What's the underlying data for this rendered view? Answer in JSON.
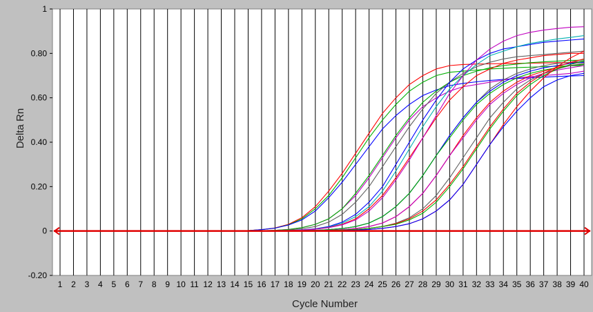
{
  "chart_data": {
    "type": "line",
    "xlabel": "Cycle Number",
    "ylabel": "Delta Rn",
    "xlim": [
      1,
      40
    ],
    "ylim": [
      -0.2,
      1.0
    ],
    "x_ticks": [
      1,
      2,
      3,
      4,
      5,
      6,
      7,
      8,
      9,
      10,
      11,
      12,
      13,
      14,
      15,
      16,
      17,
      18,
      19,
      20,
      21,
      22,
      23,
      24,
      25,
      26,
      27,
      28,
      29,
      30,
      31,
      32,
      33,
      34,
      35,
      36,
      37,
      38,
      39,
      40
    ],
    "y_ticks": [
      -0.2,
      0,
      0.2,
      0.4,
      0.6,
      0.8,
      1.0
    ],
    "y_tick_labels": [
      "-0.20",
      "0",
      "0.20",
      "0.40",
      "0.60",
      "0.80",
      "1"
    ],
    "grid": "vertical lines at each cycle",
    "threshold": 0.0,
    "threshold_color": "#e00000",
    "background_color": "#ffffff",
    "frame_color": "#c0c0c0",
    "series": [
      {
        "color": "#ff0000",
        "values": [
          0,
          0,
          0,
          0,
          0,
          0,
          0,
          0,
          0,
          0,
          0,
          0,
          0,
          0,
          0.002,
          0.006,
          0.014,
          0.03,
          0.06,
          0.11,
          0.18,
          0.26,
          0.35,
          0.44,
          0.53,
          0.6,
          0.66,
          0.7,
          0.73,
          0.745,
          0.75,
          0.752,
          0.753,
          0.754,
          0.755,
          0.756,
          0.757,
          0.758,
          0.759,
          0.76
        ]
      },
      {
        "color": "#00b000",
        "values": [
          0,
          0,
          0,
          0,
          0,
          0,
          0,
          0,
          0,
          0,
          0,
          0,
          0,
          0,
          0.002,
          0.006,
          0.013,
          0.028,
          0.055,
          0.1,
          0.16,
          0.24,
          0.33,
          0.42,
          0.5,
          0.57,
          0.63,
          0.67,
          0.7,
          0.715,
          0.72,
          0.725,
          0.73,
          0.733,
          0.736,
          0.738,
          0.74,
          0.742,
          0.744,
          0.745
        ]
      },
      {
        "color": "#0000ff",
        "values": [
          0,
          0,
          0,
          0,
          0,
          0,
          0,
          0,
          0,
          0,
          0,
          0,
          0,
          0,
          0.002,
          0.006,
          0.013,
          0.027,
          0.05,
          0.09,
          0.15,
          0.22,
          0.3,
          0.38,
          0.46,
          0.52,
          0.57,
          0.61,
          0.635,
          0.655,
          0.665,
          0.672,
          0.678,
          0.683,
          0.687,
          0.69,
          0.693,
          0.696,
          0.698,
          0.7
        ]
      },
      {
        "color": "#c000c0",
        "values": [
          0,
          0,
          0,
          0,
          0,
          0,
          0,
          0,
          0,
          0,
          0,
          0,
          0,
          0,
          0,
          0.001,
          0.003,
          0.007,
          0.015,
          0.03,
          0.055,
          0.1,
          0.16,
          0.24,
          0.33,
          0.42,
          0.5,
          0.56,
          0.6,
          0.63,
          0.65,
          0.66,
          0.67,
          0.68,
          0.69,
          0.695,
          0.7,
          0.705,
          0.71,
          0.72
        ]
      },
      {
        "color": "#00b000",
        "values": [
          0,
          0,
          0,
          0,
          0,
          0,
          0,
          0,
          0,
          0,
          0,
          0,
          0,
          0,
          0,
          0.001,
          0.003,
          0.007,
          0.015,
          0.03,
          0.055,
          0.1,
          0.17,
          0.25,
          0.34,
          0.43,
          0.51,
          0.58,
          0.63,
          0.67,
          0.7,
          0.72,
          0.735,
          0.745,
          0.752,
          0.758,
          0.762,
          0.765,
          0.768,
          0.77
        ]
      },
      {
        "color": "#606060",
        "values": [
          0,
          0,
          0,
          0,
          0,
          0,
          0,
          0,
          0,
          0,
          0,
          0,
          0,
          0,
          0,
          0.001,
          0.002,
          0.005,
          0.01,
          0.02,
          0.04,
          0.075,
          0.13,
          0.2,
          0.29,
          0.38,
          0.47,
          0.55,
          0.62,
          0.67,
          0.71,
          0.74,
          0.76,
          0.775,
          0.785,
          0.79,
          0.795,
          0.8,
          0.805,
          0.81
        ]
      },
      {
        "color": "#0000ff",
        "values": [
          0,
          0,
          0,
          0,
          0,
          0,
          0,
          0,
          0,
          0,
          0,
          0,
          0,
          0,
          0,
          0,
          0.001,
          0.002,
          0.005,
          0.01,
          0.02,
          0.04,
          0.075,
          0.13,
          0.2,
          0.3,
          0.4,
          0.5,
          0.59,
          0.67,
          0.73,
          0.77,
          0.8,
          0.82,
          0.83,
          0.84,
          0.85,
          0.855,
          0.86,
          0.865
        ]
      },
      {
        "color": "#00b0b0",
        "values": [
          0,
          0,
          0,
          0,
          0,
          0,
          0,
          0,
          0,
          0,
          0,
          0,
          0,
          0,
          0,
          0,
          0.001,
          0.002,
          0.004,
          0.009,
          0.018,
          0.035,
          0.065,
          0.11,
          0.18,
          0.27,
          0.37,
          0.47,
          0.56,
          0.64,
          0.7,
          0.75,
          0.79,
          0.81,
          0.83,
          0.845,
          0.855,
          0.865,
          0.872,
          0.88
        ]
      },
      {
        "color": "#ff0000",
        "values": [
          0,
          0,
          0,
          0,
          0,
          0,
          0,
          0,
          0,
          0,
          0,
          0,
          0,
          0,
          0,
          0,
          0.001,
          0.002,
          0.004,
          0.008,
          0.016,
          0.03,
          0.055,
          0.1,
          0.16,
          0.24,
          0.33,
          0.42,
          0.51,
          0.59,
          0.65,
          0.7,
          0.73,
          0.755,
          0.77,
          0.78,
          0.79,
          0.795,
          0.8,
          0.8
        ]
      },
      {
        "color": "#c000c0",
        "values": [
          0,
          0,
          0,
          0,
          0,
          0,
          0,
          0,
          0,
          0,
          0,
          0,
          0,
          0,
          0,
          0,
          0.001,
          0.002,
          0.004,
          0.008,
          0.015,
          0.028,
          0.05,
          0.09,
          0.15,
          0.23,
          0.32,
          0.42,
          0.52,
          0.62,
          0.7,
          0.77,
          0.82,
          0.855,
          0.88,
          0.895,
          0.905,
          0.912,
          0.918,
          0.92
        ]
      },
      {
        "color": "#606060",
        "values": [
          0,
          0,
          0,
          0,
          0,
          0,
          0,
          0,
          0,
          0,
          0,
          0,
          0,
          0,
          0,
          0,
          0,
          0.001,
          0.002,
          0.003,
          0.006,
          0.011,
          0.02,
          0.036,
          0.065,
          0.11,
          0.17,
          0.25,
          0.34,
          0.43,
          0.51,
          0.58,
          0.64,
          0.68,
          0.71,
          0.73,
          0.745,
          0.755,
          0.76,
          0.765
        ]
      },
      {
        "color": "#0000ff",
        "values": [
          0,
          0,
          0,
          0,
          0,
          0,
          0,
          0,
          0,
          0,
          0,
          0,
          0,
          0,
          0,
          0,
          0,
          0.001,
          0.002,
          0.003,
          0.006,
          0.011,
          0.02,
          0.036,
          0.065,
          0.11,
          0.17,
          0.25,
          0.34,
          0.43,
          0.51,
          0.58,
          0.63,
          0.67,
          0.7,
          0.72,
          0.735,
          0.745,
          0.755,
          0.76
        ]
      },
      {
        "color": "#00b000",
        "values": [
          0,
          0,
          0,
          0,
          0,
          0,
          0,
          0,
          0,
          0,
          0,
          0,
          0,
          0,
          0,
          0,
          0,
          0.001,
          0.002,
          0.003,
          0.006,
          0.011,
          0.02,
          0.036,
          0.065,
          0.11,
          0.17,
          0.25,
          0.34,
          0.42,
          0.5,
          0.57,
          0.62,
          0.66,
          0.69,
          0.71,
          0.725,
          0.735,
          0.745,
          0.75
        ]
      },
      {
        "color": "#ff0000",
        "values": [
          0,
          0,
          0,
          0,
          0,
          0,
          0,
          0,
          0,
          0,
          0,
          0,
          0,
          0,
          0,
          0,
          0,
          0,
          0.001,
          0.002,
          0.003,
          0.006,
          0.011,
          0.02,
          0.036,
          0.065,
          0.11,
          0.17,
          0.25,
          0.34,
          0.43,
          0.51,
          0.58,
          0.63,
          0.67,
          0.7,
          0.72,
          0.735,
          0.745,
          0.755
        ]
      },
      {
        "color": "#c000c0",
        "values": [
          0,
          0,
          0,
          0,
          0,
          0,
          0,
          0,
          0,
          0,
          0,
          0,
          0,
          0,
          0,
          0,
          0,
          0,
          0.001,
          0.002,
          0.003,
          0.006,
          0.011,
          0.02,
          0.036,
          0.065,
          0.11,
          0.17,
          0.25,
          0.34,
          0.42,
          0.5,
          0.57,
          0.62,
          0.66,
          0.69,
          0.71,
          0.725,
          0.735,
          0.745
        ]
      },
      {
        "color": "#606060",
        "values": [
          0,
          0,
          0,
          0,
          0,
          0,
          0,
          0,
          0,
          0,
          0,
          0,
          0,
          0,
          0,
          0,
          0,
          0,
          0,
          0.001,
          0.002,
          0.004,
          0.007,
          0.012,
          0.02,
          0.035,
          0.06,
          0.1,
          0.16,
          0.24,
          0.33,
          0.42,
          0.51,
          0.58,
          0.64,
          0.68,
          0.71,
          0.73,
          0.745,
          0.755
        ]
      },
      {
        "color": "#ff0000",
        "values": [
          0,
          0,
          0,
          0,
          0,
          0,
          0,
          0,
          0,
          0,
          0,
          0,
          0,
          0,
          0,
          0,
          0,
          0,
          0,
          0.001,
          0.002,
          0.004,
          0.007,
          0.012,
          0.02,
          0.033,
          0.055,
          0.09,
          0.14,
          0.21,
          0.29,
          0.38,
          0.47,
          0.55,
          0.62,
          0.67,
          0.71,
          0.74,
          0.76,
          0.775
        ]
      },
      {
        "color": "#00b000",
        "values": [
          0,
          0,
          0,
          0,
          0,
          0,
          0,
          0,
          0,
          0,
          0,
          0,
          0,
          0,
          0,
          0,
          0,
          0,
          0,
          0.001,
          0.002,
          0.004,
          0.007,
          0.012,
          0.02,
          0.03,
          0.05,
          0.08,
          0.13,
          0.2,
          0.28,
          0.37,
          0.46,
          0.54,
          0.61,
          0.66,
          0.7,
          0.73,
          0.75,
          0.765
        ]
      },
      {
        "color": "#ff0000",
        "values": [
          0,
          0,
          0,
          0,
          0,
          0,
          0,
          0,
          0,
          0,
          0,
          0,
          0,
          0,
          0,
          0,
          0,
          0,
          0,
          0,
          0.001,
          0.002,
          0.004,
          0.007,
          0.012,
          0.02,
          0.033,
          0.055,
          0.09,
          0.14,
          0.21,
          0.3,
          0.39,
          0.48,
          0.56,
          0.63,
          0.69,
          0.74,
          0.78,
          0.81
        ]
      },
      {
        "color": "#0000ff",
        "values": [
          0,
          0,
          0,
          0,
          0,
          0,
          0,
          0,
          0,
          0,
          0,
          0,
          0,
          0,
          0,
          0,
          0,
          0,
          0,
          0,
          0.001,
          0.002,
          0.004,
          0.007,
          0.012,
          0.02,
          0.033,
          0.055,
          0.09,
          0.14,
          0.21,
          0.3,
          0.39,
          0.47,
          0.54,
          0.6,
          0.65,
          0.68,
          0.7,
          0.71
        ]
      }
    ]
  }
}
